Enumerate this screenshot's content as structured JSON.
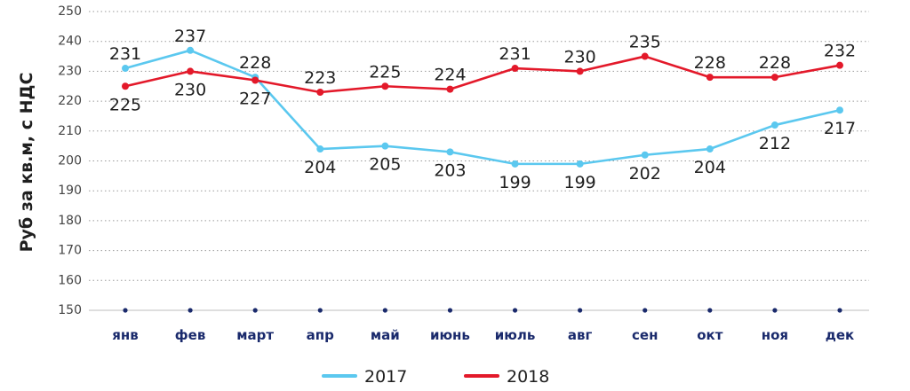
{
  "chart_data": {
    "type": "line",
    "title": "",
    "xlabel": "",
    "ylabel": "Руб за кв.м, с НДС",
    "categories": [
      "янв",
      "фев",
      "март",
      "апр",
      "май",
      "июнь",
      "июль",
      "авг",
      "сен",
      "окт",
      "ноя",
      "дек"
    ],
    "yticks": [
      150,
      160,
      170,
      180,
      190,
      200,
      210,
      220,
      230,
      240,
      250
    ],
    "ylim": [
      150,
      250
    ],
    "grid": "horizontal-dashed",
    "legend": "bottom-center",
    "series": [
      {
        "name": "2017",
        "color": "#5bc8ef",
        "values": [
          231,
          237,
          228,
          204,
          205,
          203,
          199,
          199,
          202,
          204,
          212,
          217
        ]
      },
      {
        "name": "2018",
        "color": "#e3192a",
        "values": [
          225,
          230,
          227,
          223,
          225,
          224,
          231,
          230,
          235,
          228,
          228,
          232
        ]
      }
    ]
  }
}
